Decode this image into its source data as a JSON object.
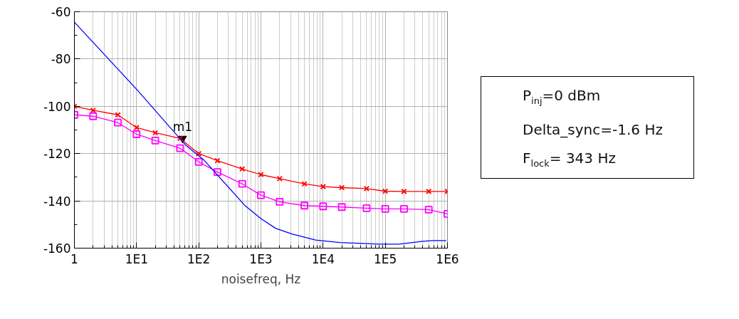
{
  "chart_data": {
    "type": "line",
    "xlabel": "noisefreq, Hz",
    "log": "x",
    "xlim": [
      1,
      1000000
    ],
    "xticks": [
      1,
      {
        "value": 10,
        "label": "1E1"
      },
      {
        "value": 100,
        "label": "1E2"
      },
      {
        "value": 1000,
        "label": "1E3"
      },
      {
        "value": 10000,
        "label": "1E4"
      },
      {
        "value": 100000,
        "label": "1E5"
      },
      {
        "value": 1000000,
        "label": "1E6"
      }
    ],
    "ylim": [
      -160,
      -60
    ],
    "yticks": [
      -160,
      -140,
      -120,
      -100,
      -80,
      -60
    ],
    "grid": true,
    "x": [
      1,
      2,
      5,
      10,
      20,
      50,
      100,
      200,
      500,
      1000,
      2000,
      5000,
      10000,
      20000,
      50000,
      100000,
      200000,
      500000,
      1000000
    ],
    "series": [
      {
        "color": "#ff0000",
        "marker": "cross",
        "values": [
          -100,
          -101.7,
          -103.6,
          -109,
          -111.2,
          -113.6,
          -120,
          -123,
          -126.5,
          -128.9,
          -130.6,
          -132.8,
          -134,
          -134.4,
          -134.8,
          -135.9,
          -136,
          -136,
          -136
        ]
      },
      {
        "color": "#ff00ff",
        "marker": "square",
        "values": [
          -103.6,
          -104.2,
          -106.9,
          -111.8,
          -114.5,
          -117.7,
          -123.5,
          -127.8,
          -132.8,
          -137.6,
          -140.4,
          -142,
          -142.3,
          -142.6,
          -143.1,
          -143.4,
          -143.4,
          -143.7,
          -145.5
        ]
      },
      {
        "color": "#0000ff",
        "marker": "none",
        "x": [
          1,
          10,
          61,
          123,
          550,
          1000,
          1720,
          3160,
          7600,
          18600,
          81000,
          166000,
          400000,
          575000,
          955000
        ],
        "values": [
          -64.4,
          -92.8,
          -116.3,
          -122.9,
          -141.9,
          -147.5,
          -151.6,
          -154,
          -156.6,
          -157.6,
          -158.3,
          -158.3,
          -157.1,
          -156.8,
          -156.8
        ]
      }
    ],
    "annotations": [
      {
        "text": "m1",
        "x": 55,
        "y": -113.6
      },
      "P$_{inj}$=0 dBm",
      "Delta_sync=-1.6 Hz",
      "F$_{lock}$= 343 Hz"
    ]
  }
}
